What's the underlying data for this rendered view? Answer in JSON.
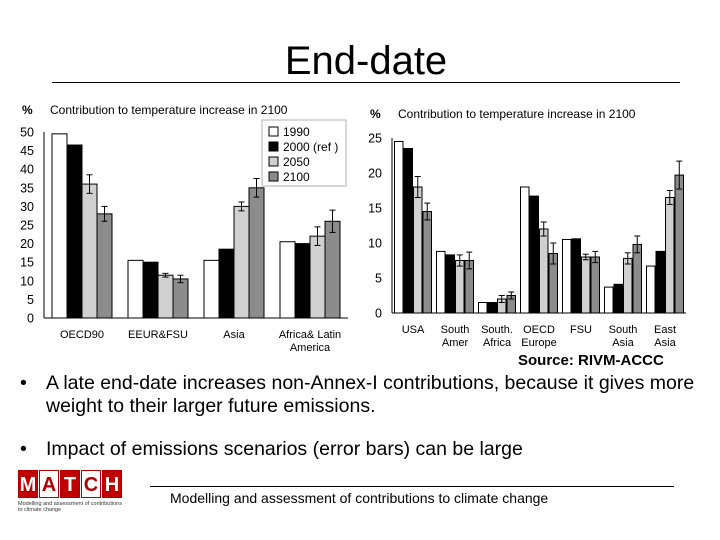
{
  "title": "End-date",
  "source": "Source: RIVM-ACCC",
  "bullets": [
    {
      "symbol": "•",
      "text": "A late end-date increases non-Annex-I contributions, because it gives more weight to their larger future emissions."
    },
    {
      "symbol": "•",
      "text": "Impact of emissions scenarios (error bars) can be large"
    }
  ],
  "footer": "Modelling and assessment of contributions to climate change",
  "logo": {
    "letters": [
      "M",
      "A",
      "T",
      "C",
      "H"
    ],
    "filled": [
      true,
      false,
      true,
      false,
      true
    ],
    "subtitle": "Modelling and assessment of contributions to climate change",
    "color": "#c00000"
  },
  "chart_data": [
    {
      "type": "bar",
      "title": "Contribution to temperature increase in 2100",
      "ylabel": "%",
      "xlabel": "",
      "ylim": [
        0,
        50
      ],
      "yticks": [
        0,
        5,
        10,
        15,
        20,
        25,
        30,
        35,
        40,
        45,
        50
      ],
      "legend_position": "top-right",
      "categories": [
        [
          "OECD90"
        ],
        [
          "EEUR&FSU"
        ],
        [
          "Asia"
        ],
        [
          "Africa& Latin",
          "America"
        ]
      ],
      "series": [
        {
          "name": "1990",
          "color": "#ffffff",
          "values": [
            49.5,
            15.5,
            15.5,
            20.5
          ],
          "err": [
            0,
            0,
            0,
            0
          ]
        },
        {
          "name": "2000 (ref )",
          "color": "#000000",
          "values": [
            46.5,
            15,
            18.5,
            20
          ],
          "err": [
            0,
            0,
            0,
            0
          ]
        },
        {
          "name": "2050",
          "color": "#d0d0d0",
          "values": [
            36,
            11.5,
            30,
            22
          ],
          "err": [
            2.5,
            0.5,
            1.2,
            2.5
          ]
        },
        {
          "name": "2100",
          "color": "#8c8c8c",
          "values": [
            28,
            10.5,
            35,
            26
          ],
          "err": [
            2,
            1,
            2.5,
            3
          ]
        }
      ]
    },
    {
      "type": "bar",
      "title": "Contribution to temperature increase in 2100",
      "ylabel": "%",
      "xlabel": "",
      "ylim": [
        0,
        25
      ],
      "yticks": [
        0,
        5,
        10,
        15,
        20,
        25
      ],
      "categories": [
        [
          "USA"
        ],
        [
          "South",
          "Amer"
        ],
        [
          "South.",
          "Africa"
        ],
        [
          "OECD",
          "Europe"
        ],
        [
          "FSU"
        ],
        [
          "South",
          "Asia"
        ],
        [
          "East",
          "Asia"
        ]
      ],
      "series": [
        {
          "name": "1990",
          "color": "#ffffff",
          "values": [
            24.5,
            8.8,
            1.5,
            18,
            10.5,
            3.7,
            6.7
          ],
          "err": [
            0,
            0,
            0,
            0,
            0,
            0,
            0
          ]
        },
        {
          "name": "2000 (ref )",
          "color": "#000000",
          "values": [
            23.5,
            8.3,
            1.5,
            16.7,
            10.6,
            4.1,
            8.8
          ],
          "err": [
            0,
            0,
            0,
            0,
            0,
            0,
            0
          ]
        },
        {
          "name": "2050",
          "color": "#d0d0d0",
          "values": [
            18,
            7.5,
            2,
            12,
            8,
            7.8,
            16.5
          ],
          "err": [
            1.5,
            0.8,
            0.5,
            1,
            0.4,
            0.8,
            1
          ]
        },
        {
          "name": "2100",
          "color": "#8c8c8c",
          "values": [
            14.5,
            7.5,
            2.5,
            8.5,
            8,
            9.8,
            19.7
          ],
          "err": [
            1.2,
            1.2,
            0.5,
            1.5,
            0.8,
            1.2,
            2
          ]
        }
      ]
    }
  ]
}
